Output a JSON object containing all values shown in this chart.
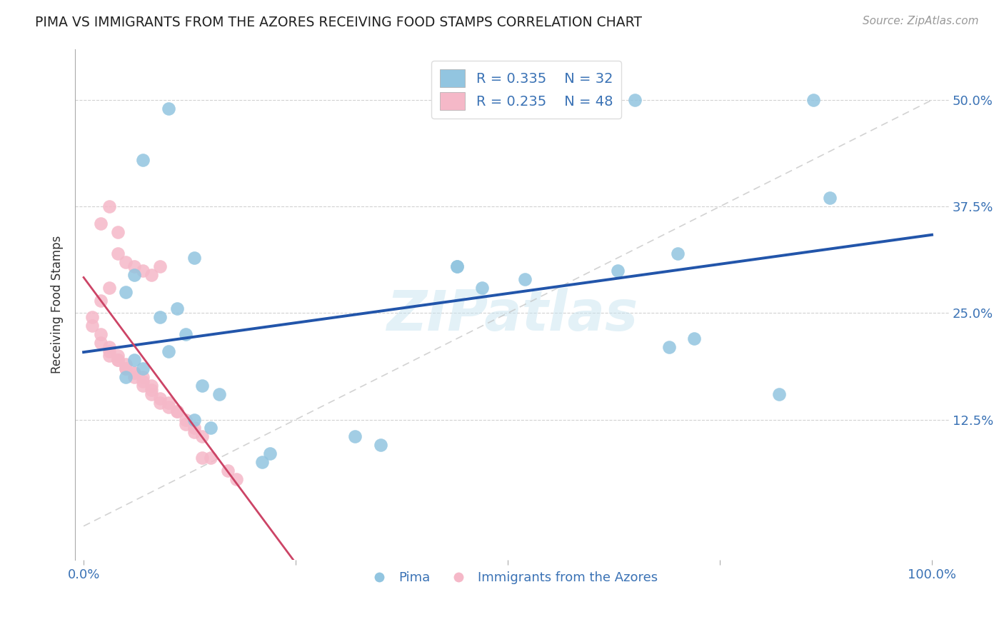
{
  "title": "PIMA VS IMMIGRANTS FROM THE AZORES RECEIVING FOOD STAMPS CORRELATION CHART",
  "source": "Source: ZipAtlas.com",
  "ylabel": "Receiving Food Stamps",
  "ytick_labels": [
    "12.5%",
    "25.0%",
    "37.5%",
    "50.0%"
  ],
  "ytick_values": [
    0.125,
    0.25,
    0.375,
    0.5
  ],
  "xtick_values": [
    0.0,
    0.25,
    0.5,
    0.75,
    1.0
  ],
  "xtick_labels": [
    "0.0%",
    "",
    "",
    "",
    "100.0%"
  ],
  "xlim": [
    -0.01,
    1.02
  ],
  "ylim": [
    -0.04,
    0.56
  ],
  "legend_r_blue": "R = 0.335",
  "legend_n_blue": "N = 32",
  "legend_r_pink": "R = 0.235",
  "legend_n_pink": "N = 48",
  "blue_color": "#92c5e0",
  "pink_color": "#f5b8c8",
  "blue_line_color": "#2255aa",
  "pink_line_color": "#cc4466",
  "diag_line_color": "#cccccc",
  "watermark": "ZIPatlas",
  "blue_scatter_x": [
    0.1,
    0.07,
    0.65,
    0.86,
    0.7,
    0.63,
    0.52,
    0.47,
    0.72,
    0.69,
    0.88,
    0.82,
    0.13,
    0.06,
    0.05,
    0.11,
    0.09,
    0.12,
    0.1,
    0.06,
    0.07,
    0.05,
    0.14,
    0.16,
    0.13,
    0.15,
    0.22,
    0.21,
    0.44,
    0.44,
    0.32,
    0.35
  ],
  "blue_scatter_y": [
    0.49,
    0.43,
    0.5,
    0.5,
    0.32,
    0.3,
    0.29,
    0.28,
    0.22,
    0.21,
    0.385,
    0.155,
    0.315,
    0.295,
    0.275,
    0.255,
    0.245,
    0.225,
    0.205,
    0.195,
    0.185,
    0.175,
    0.165,
    0.155,
    0.125,
    0.115,
    0.085,
    0.075,
    0.305,
    0.305,
    0.105,
    0.095
  ],
  "pink_scatter_x": [
    0.03,
    0.02,
    0.04,
    0.04,
    0.05,
    0.06,
    0.07,
    0.08,
    0.09,
    0.03,
    0.02,
    0.01,
    0.01,
    0.02,
    0.02,
    0.03,
    0.03,
    0.03,
    0.04,
    0.04,
    0.04,
    0.05,
    0.05,
    0.05,
    0.06,
    0.06,
    0.06,
    0.07,
    0.07,
    0.07,
    0.08,
    0.08,
    0.08,
    0.09,
    0.09,
    0.1,
    0.1,
    0.11,
    0.11,
    0.12,
    0.12,
    0.13,
    0.13,
    0.14,
    0.14,
    0.15,
    0.17,
    0.18
  ],
  "pink_scatter_y": [
    0.375,
    0.355,
    0.345,
    0.32,
    0.31,
    0.305,
    0.3,
    0.295,
    0.305,
    0.28,
    0.265,
    0.245,
    0.235,
    0.225,
    0.215,
    0.21,
    0.205,
    0.2,
    0.2,
    0.195,
    0.195,
    0.19,
    0.185,
    0.185,
    0.18,
    0.18,
    0.175,
    0.175,
    0.17,
    0.165,
    0.165,
    0.16,
    0.155,
    0.15,
    0.145,
    0.145,
    0.14,
    0.135,
    0.135,
    0.125,
    0.12,
    0.115,
    0.11,
    0.105,
    0.08,
    0.08,
    0.065,
    0.055
  ]
}
